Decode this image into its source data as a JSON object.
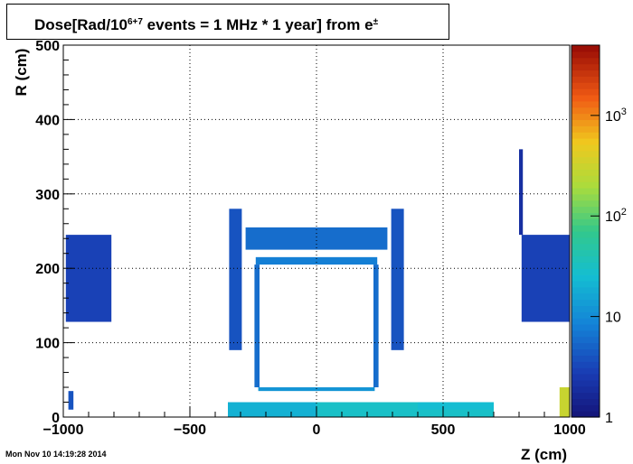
{
  "title": {
    "prefix": "Dose[Rad/10",
    "sup": "6+7",
    "middle": " events = 1 MHz * 1 year] from e",
    "sup2": "±"
  },
  "timestamp": "Mon Nov 10 14:19:28 2014",
  "chart_data": {
    "type": "heatmap",
    "xlabel": "Z (cm)",
    "ylabel": "R (cm)",
    "xlim": [
      -1000,
      1000
    ],
    "ylim": [
      0,
      500
    ],
    "log_color_scale": true,
    "color_range": [
      1,
      5000
    ],
    "x_ticks": [
      -1000,
      -500,
      0,
      500,
      1000
    ],
    "x_tick_labels": [
      "−1000",
      "−500",
      "0",
      "500",
      "1000"
    ],
    "y_ticks": [
      0,
      100,
      200,
      300,
      400,
      500
    ],
    "y_tick_labels": [
      "0",
      "100",
      "200",
      "300",
      "400",
      "500"
    ],
    "colorbar_ticks": [
      1,
      10,
      100,
      1000
    ],
    "colorbar_tick_labels": [
      "1",
      "10",
      "10^2",
      "10^3"
    ],
    "grid": true,
    "regions": [
      {
        "name": "left endcap",
        "z": [
          -990,
          -810
        ],
        "r": [
          128,
          245
        ],
        "dose": 3
      },
      {
        "name": "right endcap",
        "z": [
          810,
          1000
        ],
        "r": [
          128,
          245
        ],
        "dose": 3
      },
      {
        "name": "right endcap spike",
        "z": [
          800,
          815
        ],
        "r": [
          245,
          360
        ],
        "dose": 2
      },
      {
        "name": "barrel outer",
        "z": [
          -280,
          280
        ],
        "r": [
          225,
          255
        ],
        "dose": 6
      },
      {
        "name": "barrel top layer",
        "z": [
          -240,
          240
        ],
        "r": [
          205,
          215
        ],
        "dose": 8
      },
      {
        "name": "barrel left wall",
        "z": [
          -245,
          -225
        ],
        "r": [
          40,
          205
        ],
        "dose": 6
      },
      {
        "name": "barrel right wall",
        "z": [
          225,
          245
        ],
        "r": [
          40,
          205
        ],
        "dose": 6
      },
      {
        "name": "left flange",
        "z": [
          -345,
          -295
        ],
        "r": [
          90,
          280
        ],
        "dose": 4
      },
      {
        "name": "right flange",
        "z": [
          295,
          345
        ],
        "r": [
          90,
          280
        ],
        "dose": 4
      },
      {
        "name": "inner layer",
        "z": [
          -230,
          230
        ],
        "r": [
          35,
          40
        ],
        "dose": 12
      },
      {
        "name": "beam region left",
        "z": [
          -350,
          0
        ],
        "r": [
          0,
          20
        ],
        "dose": 20
      },
      {
        "name": "beam region right",
        "z": [
          0,
          700
        ],
        "r": [
          0,
          20
        ],
        "dose": 30
      },
      {
        "name": "forward right",
        "z": [
          400,
          700
        ],
        "r": [
          10,
          20
        ],
        "dose": 25
      },
      {
        "name": "far forward",
        "z": [
          960,
          1000
        ],
        "r": [
          0,
          40
        ],
        "dose": 300
      },
      {
        "name": "left small",
        "z": [
          -980,
          -960
        ],
        "r": [
          10,
          35
        ],
        "dose": 4
      }
    ]
  }
}
